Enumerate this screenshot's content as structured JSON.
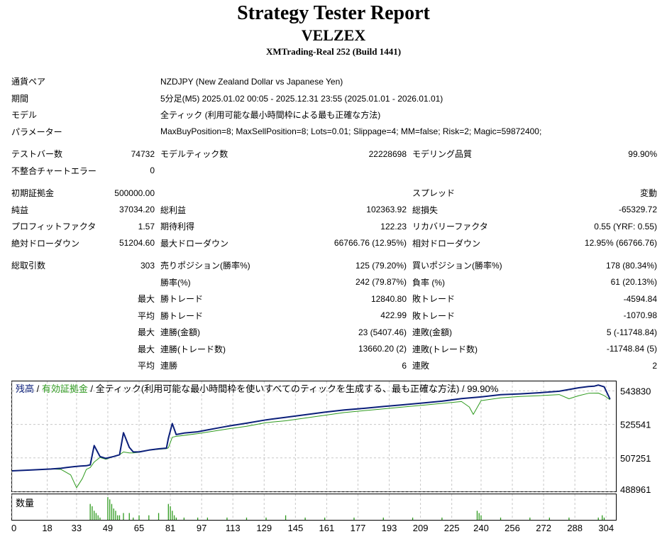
{
  "header": {
    "title": "Strategy Tester Report",
    "ea_name": "VELZEX",
    "server": "XMTrading-Real 252 (Build 1441)"
  },
  "settings": [
    {
      "label": "通貨ペア",
      "value": "NZDJPY (New Zealand Dollar vs Japanese Yen)"
    },
    {
      "label": "期間",
      "value": "5分足(M5) 2025.01.02 00:05 - 2025.12.31 23:55 (2025.01.01 - 2026.01.01)"
    },
    {
      "label": "モデル",
      "value": "全ティック (利用可能な最小時間枠による最も正確な方法)"
    },
    {
      "label": "パラメーター",
      "value": "MaxBuyPosition=8; MaxSellPosition=8; Lots=0.01; Slippage=4; MM=false; Risk=2; Magic=59872400;"
    }
  ],
  "stats": {
    "test_bars_label": "テストバー数",
    "test_bars": "74732",
    "model_ticks_label": "モデルティック数",
    "model_ticks": "22228698",
    "modeling_quality_label": "モデリング品質",
    "modeling_quality": "99.90%",
    "mismatch_label": "不整合チャートエラー",
    "mismatch": "0",
    "initial_deposit_label": "初期証拠金",
    "initial_deposit": "500000.00",
    "spread_label": "スプレッド",
    "spread": "変動",
    "net_profit_label": "純益",
    "net_profit": "37034.20",
    "gross_profit_label": "総利益",
    "gross_profit": "102363.92",
    "gross_loss_label": "総損失",
    "gross_loss": "-65329.72",
    "profit_factor_label": "プロフィットファクタ",
    "profit_factor": "1.57",
    "expected_payoff_label": "期待利得",
    "expected_payoff": "122.23",
    "recovery_factor_label": "リカバリーファクタ",
    "recovery_factor": "0.55 (YRF: 0.55)",
    "abs_drawdown_label": "絶対ドローダウン",
    "abs_drawdown": "51204.60",
    "max_drawdown_label": "最大ドローダウン",
    "max_drawdown": "66766.76 (12.95%)",
    "rel_drawdown_label": "相対ドローダウン",
    "rel_drawdown": "12.95% (66766.76)",
    "total_trades_label": "総取引数",
    "total_trades": "303",
    "short_label": "売りポジション(勝率%)",
    "short": "125 (79.20%)",
    "long_label": "買いポジション(勝率%)",
    "long": "178 (80.34%)",
    "win_rate_label": "勝率(%)",
    "win_rate": "242 (79.87%)",
    "loss_rate_label": "負率 (%)",
    "loss_rate": "61 (20.13%)",
    "max_label": "最大",
    "avg_label": "平均",
    "win_trade_label": "勝トレード",
    "loss_trade_label": "敗トレード",
    "largest_win": "12840.80",
    "largest_loss": "-4594.84",
    "avg_win": "422.99",
    "avg_loss": "-1070.98",
    "consec_win_amount_label": "連勝(金額)",
    "consec_win_amount": "23 (5407.46)",
    "consec_loss_amount_label": "連敗(金額)",
    "consec_loss_amount": "5 (-11748.84)",
    "consec_win_trades_label": "連勝(トレード数)",
    "consec_win_trades": "13660.20 (2)",
    "consec_loss_trades_label": "連敗(トレード数)",
    "consec_loss_trades": "-11748.84 (5)",
    "consec_wins_label": "連勝",
    "avg_consec_wins": "6",
    "consec_losses_label": "連敗",
    "avg_consec_losses": "2"
  },
  "chart_data": {
    "type": "line",
    "legend": {
      "balance": "残高",
      "sep": " / ",
      "equity": "有効証拠金",
      "rest": " / 全ティック(利用可能な最小時間枠を使いすべてのティックを生成する、最も正確な方法) / 99.90%"
    },
    "colors": {
      "balance": "#0b1f7a",
      "equity": "#2e9a1e",
      "volume": "#2e9a1e",
      "grid": "#c8c8c8"
    },
    "ylim": [
      488961,
      549000
    ],
    "yticks": [
      488961,
      507251,
      525541,
      543830
    ],
    "x_ticks": [
      0,
      18,
      33,
      49,
      65,
      81,
      97,
      113,
      129,
      145,
      161,
      177,
      193,
      209,
      225,
      240,
      256,
      272,
      288,
      304
    ],
    "xlim": [
      0,
      309
    ],
    "volume_label": "数量",
    "series": [
      {
        "name": "残高",
        "x": [
          0,
          10,
          20,
          25,
          28,
          32,
          35,
          38,
          40,
          42,
          45,
          48,
          52,
          55,
          57,
          60,
          62,
          65,
          70,
          75,
          79,
          80,
          82,
          84,
          88,
          95,
          100,
          105,
          110,
          120,
          130,
          140,
          150,
          160,
          170,
          180,
          190,
          200,
          210,
          220,
          230,
          240,
          250,
          260,
          270,
          280,
          290,
          295,
          298,
          300,
          303,
          306
        ],
        "y": [
          500200,
          500700,
          501200,
          501600,
          502000,
          502500,
          502800,
          503000,
          503500,
          514000,
          508000,
          507000,
          508000,
          509000,
          521000,
          513000,
          510500,
          510500,
          511500,
          512200,
          512600,
          518000,
          526000,
          520000,
          520800,
          521500,
          522500,
          523500,
          524500,
          526200,
          528000,
          529400,
          530800,
          532200,
          533400,
          534300,
          535300,
          536200,
          537200,
          538200,
          539600,
          540500,
          541700,
          542200,
          542800,
          543600,
          545500,
          546200,
          546400,
          547000,
          546000,
          539300
        ]
      },
      {
        "name": "有効証拠金",
        "x": [
          0,
          20,
          25,
          30,
          33,
          36,
          38,
          40,
          42,
          45,
          48,
          52,
          55,
          57,
          60,
          62,
          65,
          70,
          79,
          80,
          82,
          84,
          95,
          110,
          120,
          130,
          140,
          150,
          160,
          170,
          180,
          190,
          200,
          210,
          220,
          230,
          234,
          236,
          240,
          250,
          260,
          270,
          280,
          285,
          290,
          295,
          300,
          303,
          306
        ],
        "y": [
          500200,
          501200,
          501000,
          498000,
          491000,
          496000,
          501000,
          502000,
          505000,
          507500,
          506500,
          508000,
          509000,
          510500,
          510000,
          510000,
          510300,
          511500,
          512300,
          512800,
          518500,
          519000,
          520500,
          523000,
          524500,
          526500,
          527500,
          529000,
          530500,
          532000,
          533000,
          534000,
          535000,
          536000,
          537000,
          538000,
          535000,
          531000,
          538500,
          540000,
          540800,
          541200,
          541800,
          539500,
          541200,
          542500,
          542600,
          541200,
          539000
        ]
      }
    ],
    "volume": {
      "x": [
        40,
        41,
        42,
        43,
        44,
        45,
        49,
        50,
        51,
        52,
        53,
        54,
        55,
        57,
        60,
        62,
        65,
        70,
        75,
        80,
        81,
        82,
        83,
        84,
        88,
        95,
        100,
        110,
        120,
        130,
        140,
        150,
        160,
        175,
        190,
        205,
        220,
        238,
        239,
        240,
        250,
        265,
        275,
        285,
        300,
        302,
        303
      ],
      "y": [
        7,
        6,
        4,
        3,
        2,
        1,
        10,
        9,
        7,
        5,
        4,
        2,
        2,
        3,
        3,
        1,
        2,
        2,
        3,
        7,
        6,
        4,
        2,
        1,
        1,
        1,
        1,
        1,
        1,
        1,
        2,
        1,
        1,
        1,
        1,
        1,
        1,
        4,
        3,
        2,
        1,
        1,
        1,
        1,
        1,
        2,
        1
      ]
    }
  }
}
